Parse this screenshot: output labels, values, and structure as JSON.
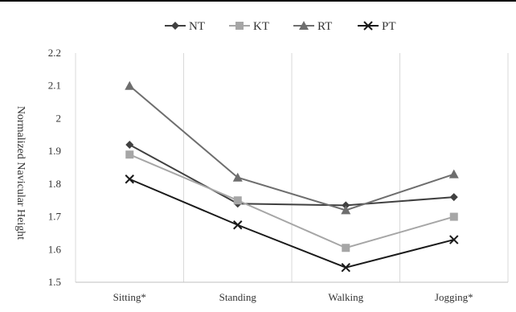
{
  "chart_data": {
    "type": "line",
    "title": "",
    "xlabel": "",
    "ylabel": "Normalized Navicular Height",
    "categories": [
      "Sitting*",
      "Standing",
      "Walking",
      "Jogging*"
    ],
    "ylim": [
      1.5,
      2.2
    ],
    "yticks": [
      "1.5",
      "1.6",
      "1.7",
      "1.8",
      "1.9",
      "2",
      "2.1",
      "2.2"
    ],
    "ytick_values": [
      1.5,
      1.6,
      1.7,
      1.8,
      1.9,
      2.0,
      2.1,
      2.2
    ],
    "grid": "vertical",
    "legend_position": "top-center",
    "series": [
      {
        "name": "NT",
        "marker": "diamond",
        "color": "#404040",
        "values": [
          1.92,
          1.74,
          1.735,
          1.76
        ]
      },
      {
        "name": "KT",
        "marker": "square",
        "color": "#a6a6a6",
        "values": [
          1.89,
          1.75,
          1.605,
          1.7
        ]
      },
      {
        "name": "RT",
        "marker": "triangle",
        "color": "#6e6e6e",
        "values": [
          2.1,
          1.82,
          1.72,
          1.83
        ]
      },
      {
        "name": "PT",
        "marker": "x",
        "color": "#1a1a1a",
        "values": [
          1.815,
          1.675,
          1.545,
          1.63
        ]
      }
    ]
  }
}
